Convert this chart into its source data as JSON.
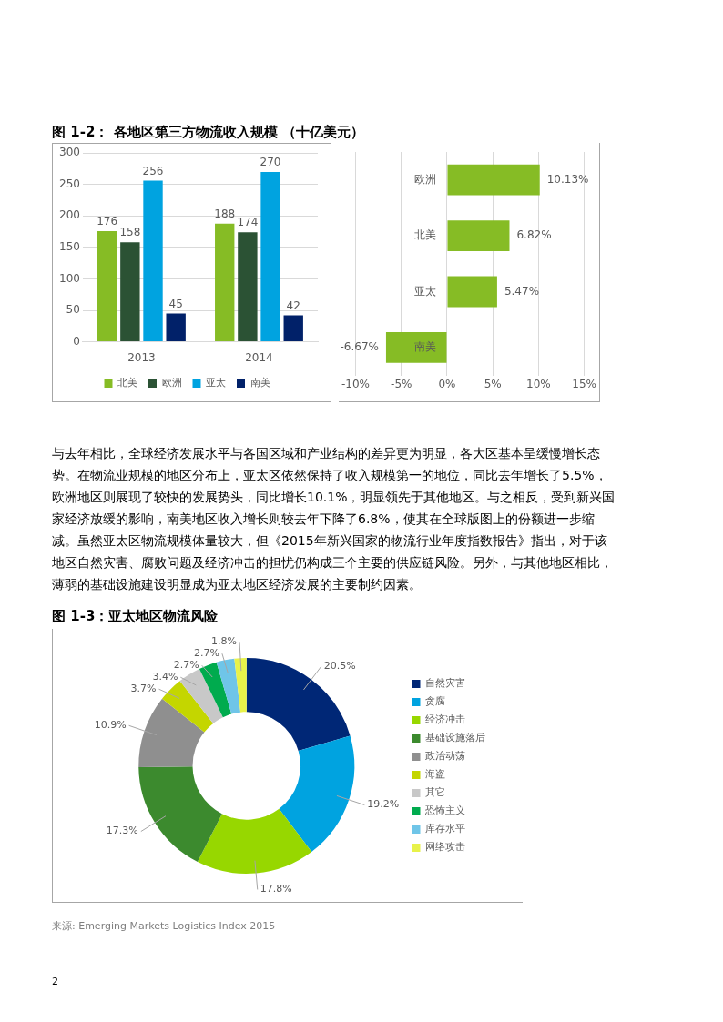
{
  "chart_data": [
    {
      "type": "bar",
      "title": "图 1-2： 各地区第三方物流收入规模 （十亿美元）",
      "categories": [
        "2013",
        "2014"
      ],
      "series": [
        {
          "name": "北美",
          "color": "#86bc25",
          "values": [
            176,
            188
          ]
        },
        {
          "name": "欧洲",
          "color": "#2b5234",
          "values": [
            158,
            174
          ]
        },
        {
          "name": "亚太",
          "color": "#00a3e0",
          "values": [
            256,
            270
          ]
        },
        {
          "name": "南美",
          "color": "#012169",
          "values": [
            45,
            42
          ]
        }
      ],
      "ylim": [
        0,
        300
      ],
      "yticks": [
        0,
        50,
        100,
        150,
        200,
        250,
        300
      ],
      "grid": "y",
      "legend": "bottom",
      "data_labels": true
    },
    {
      "type": "bar",
      "orientation": "horizontal",
      "categories": [
        "欧洲",
        "北美",
        "亚太",
        "南美"
      ],
      "values": [
        10.13,
        6.82,
        5.47,
        -6.67
      ],
      "color": "#86bc25",
      "value_labels": [
        "10.13%",
        "6.82%",
        "5.47%",
        "-6.67%"
      ],
      "xlim": [
        -10,
        15
      ],
      "xticks": [
        {
          "value": -10,
          "label": "-10%"
        },
        {
          "value": -5,
          "label": "-5%"
        },
        {
          "value": 0,
          "label": "0%"
        },
        {
          "value": 5,
          "label": "5%"
        },
        {
          "value": 10,
          "label": "10%"
        },
        {
          "value": 15,
          "label": "15%"
        }
      ],
      "grid": "x",
      "annotations": [
        "与去年相比，全球经济发展水平与各国区域和产业结构的差异更为明显，各大区基本呈缓慢增长态势。在物流业规模的地区分布上，亚太区依然保持了收入规模第一的地位，同比去年增长了5.5%，欧洲地区则展现了较快的发展势头，同比增长10.1%，明显领先于其他地区。与之相反，受到新兴国家经济放缓的影响，南美地区收入增长则较去年下降了6.8%，使其在全球版图上的份额进一步缩减。虽然亚太区物流规模体量较大，但《2015年新兴国家的物流行业年度指数报告》指出，对于该地区自然灾害、腐败问题及经济冲击的担忧仍构成三个主要的供应链风险。另外，与其他地区相比，薄弱的基础设施建设明显成为亚太地区经济发展的主要制约因素。"
      ]
    },
    {
      "type": "donut",
      "title": "图 1-3：亚太地区物流风险",
      "categories": [
        "自然灾害",
        "贪腐",
        "经济冲击",
        "基础设施落后",
        "政治动荡",
        "海盗",
        "其它",
        "恐怖主义",
        "库存水平",
        "网络攻击"
      ],
      "values": [
        20.5,
        19.2,
        17.8,
        17.3,
        10.9,
        3.7,
        3.4,
        2.7,
        2.7,
        1.8
      ],
      "colors": [
        "#002776",
        "#00a3e0",
        "#97d700",
        "#3c8a2e",
        "#8f8f8f",
        "#c4d600",
        "#c8c8c8",
        "#00ab4e",
        "#6fc5e8",
        "#e8f24a"
      ],
      "value_labels": [
        "20.5%",
        "19.2%",
        "17.8%",
        "17.3%",
        "10.9%",
        "3.7%",
        "3.4%",
        "2.7%",
        "2.7%",
        "1.8%"
      ],
      "legend": "right",
      "annotations": [
        "来源: Emerging Markets Logistics Index 2015",
        "2"
      ]
    }
  ]
}
